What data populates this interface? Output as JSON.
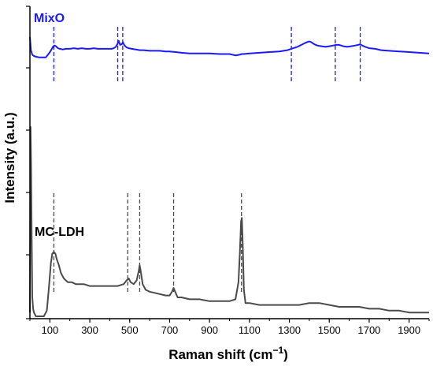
{
  "chart_data": {
    "type": "line",
    "title": "",
    "xlabel": "Raman shift (cm",
    "xlabel_sup": "−1",
    "xlabel_close": ")",
    "ylabel": "Intensity (a.u.)",
    "xlim": [
      0,
      2000
    ],
    "ylim": [
      0,
      100
    ],
    "x_ticks": [
      100,
      300,
      500,
      700,
      900,
      1100,
      1300,
      1500,
      1700,
      1900
    ],
    "x_tick_labels": [
      "100",
      "300",
      "500",
      "700",
      "900",
      "1100",
      "1300",
      "1500",
      "1700",
      "1900"
    ],
    "y_ticks_unlabeled": [
      8,
      27,
      46,
      64,
      83,
      101
    ],
    "grid": false,
    "legend": "none",
    "series": [
      {
        "name": "MixO",
        "color": "#1a1aff",
        "x": [
          0,
          5,
          12,
          20,
          30,
          45,
          60,
          80,
          100,
          108,
          115,
          122,
          130,
          140,
          150,
          165,
          180,
          200,
          220,
          240,
          260,
          280,
          300,
          320,
          340,
          360,
          380,
          400,
          410,
          420,
          430,
          438,
          445,
          452,
          460,
          466,
          472,
          478,
          485,
          495,
          510,
          530,
          550,
          570,
          600,
          630,
          650,
          680,
          700,
          730,
          760,
          800,
          850,
          900,
          950,
          1000,
          1030,
          1050,
          1060,
          1070,
          1100,
          1150,
          1200,
          1250,
          1290,
          1320,
          1340,
          1360,
          1380,
          1395,
          1405,
          1415,
          1425,
          1440,
          1460,
          1480,
          1500,
          1520,
          1535,
          1550,
          1570,
          1590,
          1610,
          1630,
          1645,
          1655,
          1665,
          1680,
          1700,
          1730,
          1760,
          1800,
          1850,
          1900,
          1950,
          2000
        ],
        "y": [
          135,
          115,
          108,
          106,
          105,
          104,
          104,
          104,
          112,
          116,
          120,
          122,
          121,
          118,
          117,
          116,
          117,
          117,
          118,
          117,
          118,
          117,
          117,
          118,
          117,
          117,
          117,
          117,
          117,
          118,
          120,
          124,
          129,
          123,
          124,
          127,
          123,
          121,
          119,
          118,
          117,
          116,
          115,
          115,
          114,
          114,
          114,
          113,
          113,
          112,
          111,
          110,
          110,
          110,
          109,
          109,
          107,
          108,
          109,
          109,
          110,
          111,
          112,
          113,
          115,
          118,
          120,
          123,
          126,
          128,
          128,
          126,
          124,
          122,
          121,
          120,
          121,
          122,
          123,
          123,
          121,
          120,
          121,
          122,
          123,
          124,
          122,
          120,
          118,
          117,
          115,
          114,
          113,
          112,
          111,
          110
        ]
      },
      {
        "name": "MC-LDH",
        "color": "#4a4a4a",
        "x": [
          0,
          3,
          6,
          9,
          12,
          16,
          20,
          30,
          50,
          70,
          85,
          95,
          105,
          112,
          120,
          128,
          135,
          145,
          155,
          170,
          190,
          210,
          230,
          250,
          270,
          300,
          330,
          360,
          400,
          440,
          470,
          485,
          495,
          505,
          520,
          535,
          545,
          550,
          555,
          565,
          580,
          600,
          640,
          680,
          700,
          712,
          720,
          728,
          740,
          760,
          800,
          850,
          900,
          950,
          1000,
          1030,
          1045,
          1052,
          1058,
          1062,
          1066,
          1072,
          1080,
          1100,
          1150,
          1200,
          1250,
          1300,
          1350,
          1400,
          1450,
          1500,
          1550,
          1600,
          1650,
          1700,
          1750,
          1800,
          1850,
          1900,
          1950,
          2000
        ],
        "y": [
          2,
          100,
          80,
          40,
          10,
          4,
          2,
          0,
          0,
          0,
          3,
          15,
          28,
          33,
          34,
          33,
          30,
          27,
          23,
          20,
          18,
          18,
          17,
          17,
          17,
          16,
          16,
          16,
          16,
          16,
          17,
          19,
          20,
          18,
          17,
          19,
          24,
          27,
          24,
          17,
          14,
          13,
          12,
          11,
          11,
          13,
          15,
          13,
          10,
          10,
          9,
          9,
          8,
          8,
          8,
          9,
          18,
          34,
          50,
          52,
          40,
          14,
          7,
          7,
          6,
          6,
          6,
          6,
          6,
          7,
          7,
          6,
          5,
          5,
          5,
          4,
          4,
          3,
          3,
          2,
          2,
          2
        ]
      }
    ],
    "reference_lines": [
      {
        "series": "MixO",
        "x": [
          120,
          440,
          465,
          1310,
          1530,
          1655
        ]
      },
      {
        "series": "MC-LDH",
        "x": [
          120,
          490,
          550,
          720,
          1060
        ]
      }
    ]
  },
  "labels": {
    "mixo": "MixO",
    "mcldh": "MC-LDH"
  },
  "colors": {
    "mixo": "#1a1aff",
    "mcldh": "#4a4a4a",
    "axis": "#000000"
  }
}
